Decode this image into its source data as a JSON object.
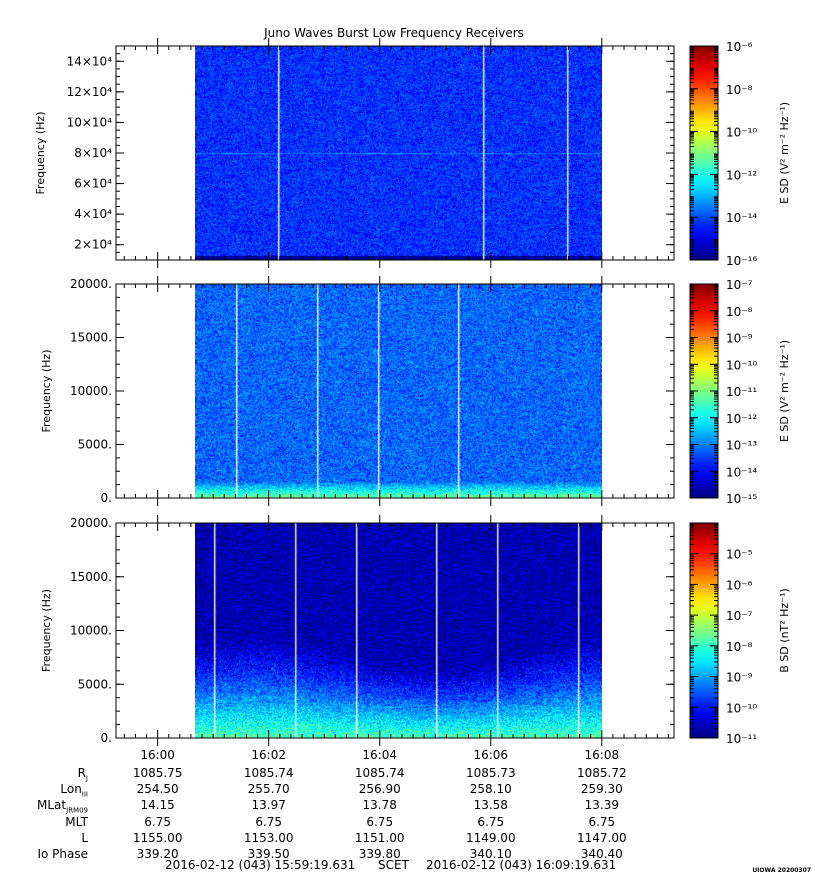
{
  "title": "Juno Waves Burst Low Frequency Receivers",
  "chart_data": [
    {
      "type": "heatmap",
      "panel": 1,
      "ylabel": "Frequency (Hz)",
      "ytick_labels": [
        "2×10⁴",
        "4×10⁴",
        "6×10⁴",
        "8×10⁴",
        "10×10⁴",
        "12×10⁴",
        "14×10⁴"
      ],
      "yticks": [
        20000,
        40000,
        60000,
        80000,
        100000,
        120000,
        140000
      ],
      "ylim": [
        10000,
        150000
      ],
      "colorbar": {
        "label": "E SD (V² m⁻² Hz⁻¹)",
        "log_range": [
          -16,
          -6
        ],
        "tick_labels": [
          "10⁻⁶",
          "10⁻⁸",
          "10⁻¹⁰",
          "10⁻¹²",
          "10⁻¹⁴",
          "10⁻¹⁶"
        ]
      },
      "data_time_range": [
        "16:00:40",
        "16:08:00"
      ],
      "gap_times_min": [
        1.5,
        5.2,
        6.7
      ],
      "typical_intensity_log": -14.3
    },
    {
      "type": "heatmap",
      "panel": 2,
      "ylabel": "Frequency (Hz)",
      "ytick_labels": [
        "0.",
        "5000.",
        "10000.",
        "15000.",
        "20000."
      ],
      "yticks": [
        0,
        5000,
        10000,
        15000,
        20000
      ],
      "ylim": [
        0,
        20000
      ],
      "colorbar": {
        "label": "E SD (V² m⁻² Hz⁻¹)",
        "log_range": [
          -15,
          -7
        ],
        "tick_labels": [
          "10⁻⁷",
          "10⁻⁸",
          "10⁻⁹",
          "10⁻¹⁰",
          "10⁻¹¹",
          "10⁻¹²",
          "10⁻¹³",
          "10⁻¹⁴",
          "10⁻¹⁵"
        ]
      },
      "data_time_range": [
        "16:00:40",
        "16:08:00"
      ],
      "gap_times_min": [
        0.75,
        2.2,
        3.3,
        4.75
      ],
      "typical_intensity_log": -13.2
    },
    {
      "type": "heatmap",
      "panel": 3,
      "ylabel": "Frequency (Hz)",
      "ytick_labels": [
        "0.",
        "5000.",
        "10000.",
        "15000.",
        "20000."
      ],
      "yticks": [
        0,
        5000,
        10000,
        15000,
        20000
      ],
      "ylim": [
        0,
        20000
      ],
      "colorbar": {
        "label": "B SD (nT² Hz⁻¹)",
        "log_range": [
          -11,
          -4
        ],
        "tick_labels": [
          "10⁻⁵",
          "10⁻⁶",
          "10⁻⁷",
          "10⁻⁸",
          "10⁻⁹",
          "10⁻¹⁰",
          "10⁻¹¹"
        ]
      },
      "data_time_range": [
        "16:00:40",
        "16:08:00"
      ],
      "gap_times_min": [
        0.35,
        1.8,
        2.9,
        4.35,
        5.45,
        6.9
      ],
      "typical_intensity_log": -10.4
    }
  ],
  "xaxis": {
    "tick_labels": [
      "16:00",
      "16:02",
      "16:04",
      "16:06",
      "16:08"
    ],
    "tick_minutes": [
      0,
      2,
      4,
      6,
      8
    ],
    "xlim_minutes": [
      -0.75,
      9.3
    ]
  },
  "table": {
    "rows": [
      {
        "label": "R",
        "sub": "J",
        "values": [
          "1085.75",
          "1085.74",
          "1085.74",
          "1085.73",
          "1085.72"
        ]
      },
      {
        "label": "Lon",
        "sub": "III",
        "values": [
          "254.50",
          "255.70",
          "256.90",
          "258.10",
          "259.30"
        ]
      },
      {
        "label": "MLat",
        "sub": "JRM09",
        "values": [
          "14.15",
          "13.97",
          "13.78",
          "13.58",
          "13.39"
        ]
      },
      {
        "label": "MLT",
        "sub": "",
        "values": [
          "6.75",
          "6.75",
          "6.75",
          "6.75",
          "6.75"
        ]
      },
      {
        "label": "L",
        "sub": "",
        "values": [
          "1155.00",
          "1153.00",
          "1151.00",
          "1149.00",
          "1147.00"
        ]
      },
      {
        "label": "Io Phase",
        "sub": "",
        "values": [
          "339.20",
          "339.50",
          "339.80",
          "340.10",
          "340.40"
        ]
      }
    ]
  },
  "footer": {
    "start": "2016-02-12 (043) 15:59:19.631",
    "center": "SCET",
    "end": "2016-02-12 (043) 16:09:19.631"
  },
  "stamp": "UIOWA 20200307"
}
